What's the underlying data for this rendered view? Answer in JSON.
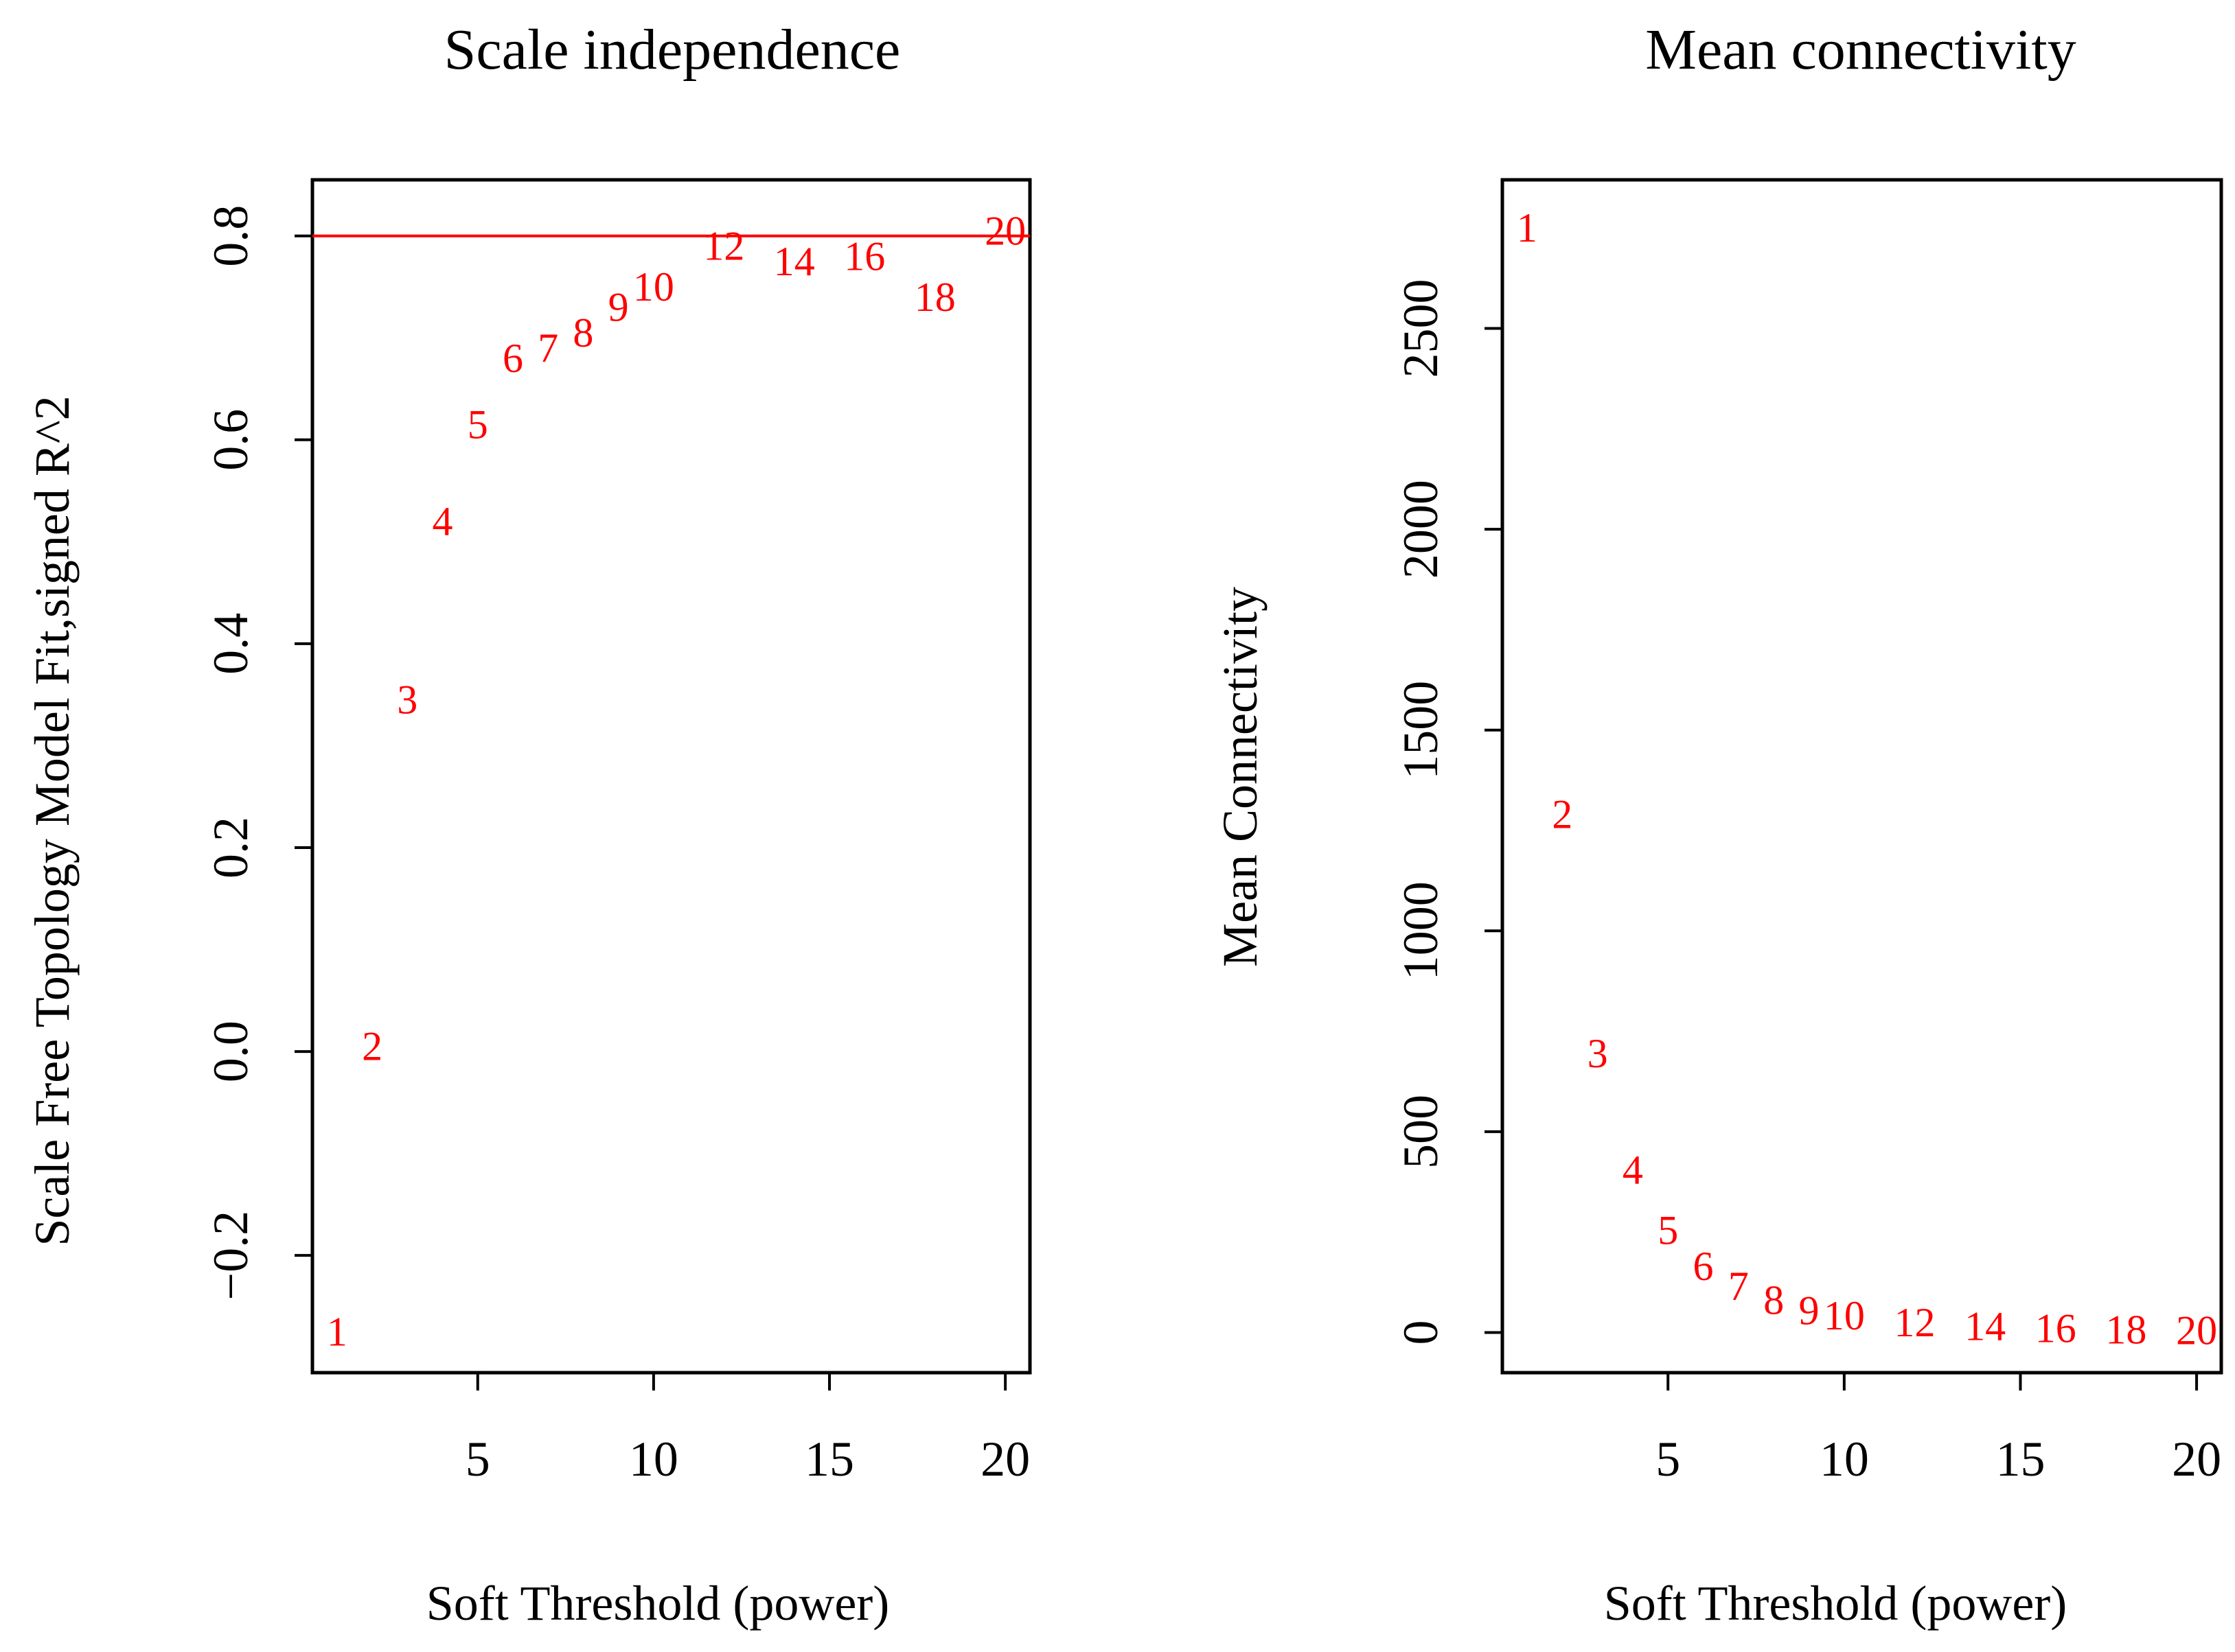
{
  "chart_data": [
    {
      "type": "scatter",
      "title": "Scale independence",
      "xlabel": "Soft Threshold (power)",
      "ylabel": "Scale Free Topology Model Fit,signed R^2",
      "xlim": [
        0.3,
        20.7
      ],
      "ylim": [
        -0.315,
        0.855
      ],
      "xticks": [
        5,
        10,
        15,
        20
      ],
      "yticks": [
        -0.2,
        0.0,
        0.2,
        0.4,
        0.6,
        0.8
      ],
      "ytick_labels": [
        "−0.2",
        "0.0",
        "0.2",
        "0.4",
        "0.6",
        "0.8"
      ],
      "hline": 0.8,
      "hline_color": "#ff0000",
      "point_color": "#ff0000",
      "points": [
        {
          "label": "1",
          "x": 1,
          "y": -0.275
        },
        {
          "label": "2",
          "x": 2,
          "y": 0.005
        },
        {
          "label": "3",
          "x": 3,
          "y": 0.345
        },
        {
          "label": "4",
          "x": 4,
          "y": 0.52
        },
        {
          "label": "5",
          "x": 5,
          "y": 0.615
        },
        {
          "label": "6",
          "x": 6,
          "y": 0.68
        },
        {
          "label": "7",
          "x": 7,
          "y": 0.69
        },
        {
          "label": "8",
          "x": 8,
          "y": 0.705
        },
        {
          "label": "9",
          "x": 9,
          "y": 0.73
        },
        {
          "label": "10",
          "x": 10,
          "y": 0.75
        },
        {
          "label": "12",
          "x": 12,
          "y": 0.79
        },
        {
          "label": "14",
          "x": 14,
          "y": 0.775
        },
        {
          "label": "16",
          "x": 16,
          "y": 0.78
        },
        {
          "label": "18",
          "x": 18,
          "y": 0.74
        },
        {
          "label": "20",
          "x": 20,
          "y": 0.805
        }
      ]
    },
    {
      "type": "scatter",
      "title": "Mean connectivity",
      "xlabel": "Soft Threshold (power)",
      "ylabel": "Mean Connectivity",
      "xlim": [
        0.3,
        20.7
      ],
      "ylim": [
        -100,
        2870
      ],
      "xticks": [
        5,
        10,
        15,
        20
      ],
      "yticks": [
        0,
        500,
        1000,
        1500,
        2000,
        2500
      ],
      "ytick_labels": [
        "0",
        "500",
        "1000",
        "1500",
        "2000",
        "2500"
      ],
      "point_color": "#ff0000",
      "points": [
        {
          "label": "1",
          "x": 1,
          "y": 2750
        },
        {
          "label": "2",
          "x": 2,
          "y": 1290
        },
        {
          "label": "3",
          "x": 3,
          "y": 695
        },
        {
          "label": "4",
          "x": 4,
          "y": 405
        },
        {
          "label": "5",
          "x": 5,
          "y": 255
        },
        {
          "label": "6",
          "x": 6,
          "y": 165
        },
        {
          "label": "7",
          "x": 7,
          "y": 115
        },
        {
          "label": "8",
          "x": 8,
          "y": 80
        },
        {
          "label": "9",
          "x": 9,
          "y": 55
        },
        {
          "label": "10",
          "x": 10,
          "y": 42
        },
        {
          "label": "12",
          "x": 12,
          "y": 25
        },
        {
          "label": "14",
          "x": 14,
          "y": 15
        },
        {
          "label": "16",
          "x": 16,
          "y": 10
        },
        {
          "label": "18",
          "x": 18,
          "y": 7
        },
        {
          "label": "20",
          "x": 20,
          "y": 5
        }
      ]
    }
  ]
}
